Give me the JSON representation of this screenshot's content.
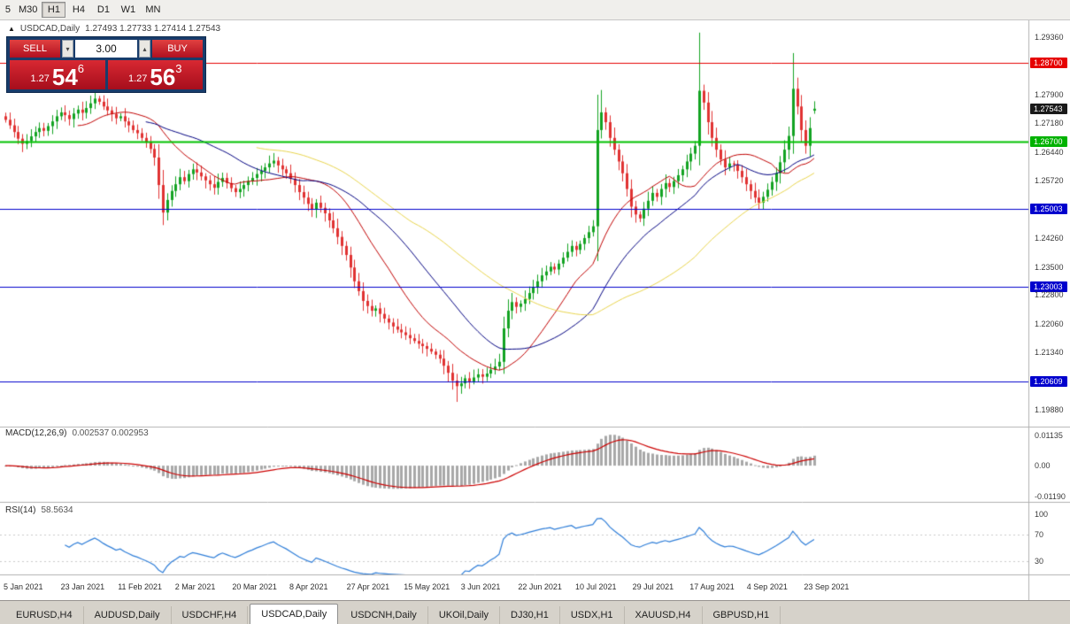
{
  "toolbar": {
    "timeframes": [
      {
        "label": "5",
        "active": false
      },
      {
        "label": "M30",
        "active": false
      },
      {
        "label": "H1",
        "active": true
      },
      {
        "label": "H4",
        "active": false
      },
      {
        "label": "D1",
        "active": false
      },
      {
        "label": "W1",
        "active": false
      },
      {
        "label": "MN",
        "active": false
      }
    ]
  },
  "header": {
    "expand_icon": "▲",
    "symbol": "USDCAD,Daily",
    "ohlc": "1.27493 1.27733 1.27414 1.27543"
  },
  "trade_panel": {
    "sell_label": "SELL",
    "buy_label": "BUY",
    "volume": "3.00",
    "sell_price": {
      "small": "1.27",
      "big": "54",
      "sup": "6"
    },
    "buy_price": {
      "small": "1.27",
      "big": "56",
      "sup": "3"
    }
  },
  "icons": {
    "spin_up": "▴",
    "spin_down": "▾"
  },
  "price_axis": {
    "labels": [
      {
        "text": "1.29360",
        "price": 1.2936,
        "type": "plain"
      },
      {
        "text": "1.28700",
        "price": 1.287,
        "type": "red"
      },
      {
        "text": "1.27900",
        "price": 1.279,
        "type": "plain"
      },
      {
        "text": "1.27543",
        "price": 1.27543,
        "type": "current"
      },
      {
        "text": "1.27180",
        "price": 1.2718,
        "type": "plain"
      },
      {
        "text": "1.26700",
        "price": 1.267,
        "type": "green"
      },
      {
        "text": "1.26440",
        "price": 1.2644,
        "type": "plain"
      },
      {
        "text": "1.25720",
        "price": 1.2572,
        "type": "plain"
      },
      {
        "text": "1.25003",
        "price": 1.25003,
        "type": "blue"
      },
      {
        "text": "1.24260",
        "price": 1.2426,
        "type": "plain"
      },
      {
        "text": "1.23500",
        "price": 1.235,
        "type": "plain"
      },
      {
        "text": "1.23003",
        "price": 1.23003,
        "type": "blue"
      },
      {
        "text": "1.22800",
        "price": 1.228,
        "type": "plain"
      },
      {
        "text": "1.22060",
        "price": 1.2206,
        "type": "plain"
      },
      {
        "text": "1.21340",
        "price": 1.2134,
        "type": "plain"
      },
      {
        "text": "1.20609",
        "price": 1.20609,
        "type": "blue"
      },
      {
        "text": "1.19880",
        "price": 1.1988,
        "type": "plain"
      }
    ],
    "badge_colors": {
      "red": "#e60000",
      "green": "#00b200",
      "blue": "#0000cd",
      "current": "#1a1a1a"
    }
  },
  "macd": {
    "name": "MACD(12,26,9)",
    "values_text": "0.002537 0.002953",
    "axis": [
      {
        "text": "0.01135",
        "value": 0.01135
      },
      {
        "text": "0.00",
        "value": 0
      },
      {
        "text": "-0.01190",
        "value": -0.0119
      }
    ]
  },
  "rsi": {
    "name": "RSI(14)",
    "value_text": "58.5634",
    "axis": [
      {
        "text": "100",
        "value": 100
      },
      {
        "text": "70",
        "value": 70
      },
      {
        "text": "30",
        "value": 30
      }
    ]
  },
  "x_axis": {
    "dates": [
      "5 Jan 2021",
      "23 Jan 2021",
      "11 Feb 2021",
      "2 Mar 2021",
      "20 Mar 2021",
      "8 Apr 2021",
      "27 Apr 2021",
      "15 May 2021",
      "3 Jun 2021",
      "22 Jun 2021",
      "10 Jul 2021",
      "29 Jul 2021",
      "17 Aug 2021",
      "4 Sep 2021",
      "23 Sep 2021"
    ]
  },
  "tabs": [
    {
      "label": "EURUSD,H4",
      "active": false
    },
    {
      "label": "AUDUSD,Daily",
      "active": false
    },
    {
      "label": "USDCHF,H4",
      "active": false
    },
    {
      "label": "USDCAD,Daily",
      "active": true
    },
    {
      "label": "USDCNH,Daily",
      "active": false
    },
    {
      "label": "UKOil,Daily",
      "active": false
    },
    {
      "label": "DJ30,H1",
      "active": false
    },
    {
      "label": "USDX,H1",
      "active": false
    },
    {
      "label": "XAUUSD,H4",
      "active": false
    },
    {
      "label": "GBPUSD,H1",
      "active": false
    }
  ],
  "chart_data": {
    "type": "candlestick",
    "title": "USDCAD,Daily",
    "y_range": {
      "min": 1.1988,
      "max": 1.2936
    },
    "current_ohlc": {
      "open": 1.27493,
      "high": 1.27733,
      "low": 1.27414,
      "close": 1.27543
    },
    "base": 1.2,
    "scale": 0.0001,
    "first_open": 735,
    "closes": [
      726,
      712,
      695,
      678,
      665,
      672,
      684,
      695,
      705,
      698,
      710,
      722,
      735,
      745,
      738,
      728,
      742,
      752,
      744,
      756,
      768,
      780,
      772,
      760,
      750,
      741,
      730,
      735,
      722,
      712,
      700,
      692,
      680,
      668,
      652,
      630,
      560,
      490,
      522,
      545,
      562,
      580,
      570,
      588,
      600,
      592,
      582,
      572,
      562,
      553,
      568,
      578,
      565,
      552,
      542,
      550,
      560,
      570,
      578,
      588,
      596,
      605,
      615,
      622,
      610,
      600,
      590,
      576,
      560,
      542,
      528,
      512,
      498,
      515,
      502,
      488,
      470,
      450,
      428,
      405,
      382,
      350,
      315,
      290,
      265,
      252,
      240,
      246,
      232,
      220,
      210,
      200,
      192,
      185,
      178,
      170,
      163,
      156,
      150,
      143,
      136,
      128,
      118,
      100,
      82,
      62,
      48,
      55,
      68,
      60,
      70,
      78,
      72,
      80,
      90,
      98,
      110,
      195,
      240,
      262,
      250,
      258,
      270,
      285,
      300,
      315,
      330,
      340,
      352,
      345,
      360,
      375,
      390,
      405,
      395,
      410,
      425,
      440,
      455,
      700,
      745,
      720,
      680,
      650,
      620,
      590,
      550,
      505,
      485,
      475,
      500,
      520,
      540,
      530,
      550,
      565,
      555,
      570,
      585,
      600,
      620,
      640,
      660,
      800,
      770,
      720,
      680,
      650,
      625,
      605,
      615,
      612,
      596,
      580,
      562,
      545,
      528,
      515,
      530,
      548,
      568,
      590,
      618,
      650,
      685,
      805,
      760,
      700,
      660,
      705,
      754.3
    ],
    "wick_overrides": {
      "37": {
        "low": 458
      },
      "106": {
        "low": 8
      },
      "139": {
        "high": 790
      },
      "140": {
        "high": 802
      },
      "163": {
        "high": 948
      },
      "185": {
        "high": 896
      },
      "190": {
        "open": 749.3,
        "high": 773.3,
        "low": 741.4
      }
    },
    "hlines": [
      {
        "price": 1.287,
        "color": "#e60000",
        "width": 1
      },
      {
        "price": 1.267,
        "color": "#00c000",
        "width": 2
      },
      {
        "price": 1.25003,
        "color": "#0000cd",
        "width": 1
      },
      {
        "price": 1.23003,
        "color": "#0000cd",
        "width": 1
      },
      {
        "price": 1.20609,
        "color": "#0000cd",
        "width": 1
      }
    ],
    "moving_averages": [
      {
        "period": 18,
        "color": "#c00000"
      },
      {
        "period": 34,
        "color": "#000080"
      },
      {
        "period": 60,
        "color": "#e8d44d"
      }
    ],
    "indicators": {
      "macd": {
        "fast": 12,
        "slow": 26,
        "signal": 9,
        "current_macd": 0.002537,
        "current_signal": 0.002953,
        "hist_color": "#a8a8a8",
        "signal_color": "#cc0000"
      },
      "rsi": {
        "period": 14,
        "current": 58.5634,
        "levels": [
          70,
          30
        ],
        "color": "#2f7ed8"
      }
    },
    "colors": {
      "up": "#13a322",
      "down": "#e03232"
    }
  }
}
